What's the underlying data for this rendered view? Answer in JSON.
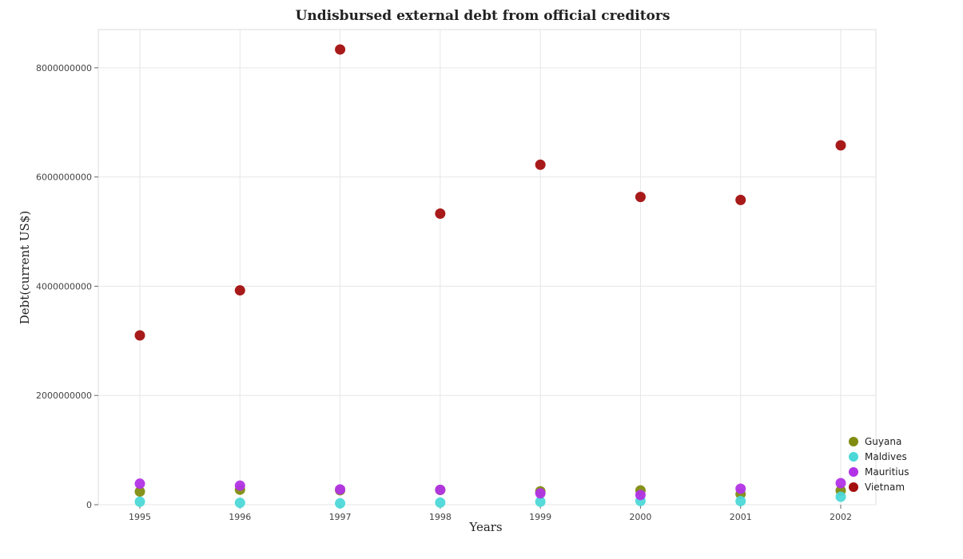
{
  "chart_data": {
    "type": "scatter",
    "title": "Undisbursed external debt from official creditors",
    "xlabel": "Years",
    "ylabel": "Debt(current US$)",
    "categories": [
      "1995",
      "1996",
      "1997",
      "1998",
      "1999",
      "2000",
      "2001",
      "2002"
    ],
    "ylim": [
      0,
      8700000000
    ],
    "yticks": [
      0,
      2000000000,
      4000000000,
      6000000000,
      8000000000
    ],
    "ytick_labels": [
      "0",
      "2000000000",
      "4000000000",
      "6000000000",
      "8000000000"
    ],
    "grid": true,
    "legend_position": "bottom-right",
    "series": [
      {
        "name": "Guyana",
        "color": "#7f8c10",
        "values": [
          240000000,
          275000000,
          265000000,
          270000000,
          245000000,
          262000000,
          195000000,
          258000000
        ]
      },
      {
        "name": "Maldives",
        "color": "#4dd8d8",
        "values": [
          55000000,
          35000000,
          25000000,
          38000000,
          55000000,
          68000000,
          65000000,
          145000000
        ]
      },
      {
        "name": "Mauritius",
        "color": "#b233e6",
        "values": [
          385000000,
          350000000,
          280000000,
          272000000,
          208000000,
          178000000,
          292000000,
          395000000
        ]
      },
      {
        "name": "Vietnam",
        "color": "#a30e0e",
        "values": [
          3100000000,
          3925000000,
          8335000000,
          5330000000,
          6225000000,
          5635000000,
          5580000000,
          6580000000
        ]
      }
    ]
  }
}
